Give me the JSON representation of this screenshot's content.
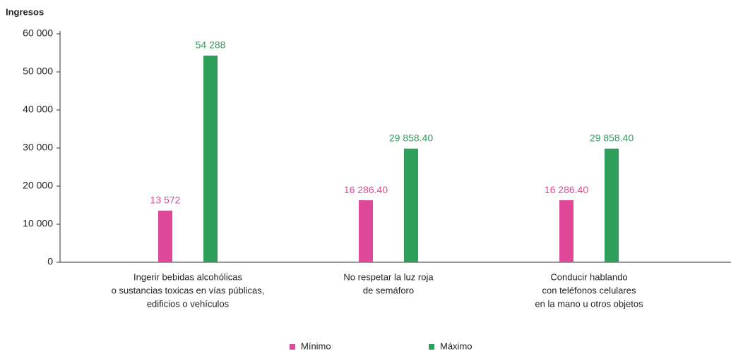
{
  "chart_data": {
    "type": "bar",
    "title": "Ingresos",
    "categories": [
      [
        "Ingerir bebidas alcohólicas",
        "o sustancias toxicas en vías públicas,",
        "edificios o vehículos"
      ],
      [
        "No respetar la luz roja",
        "de semáforo"
      ],
      [
        "Conducir hablando",
        "con teléfonos celulares",
        "en la mano u otros objetos"
      ]
    ],
    "series": [
      {
        "name": "Mínimo",
        "color": "#e0489a",
        "values": [
          13572,
          16286.4,
          16286.4
        ],
        "value_labels": [
          "13 572",
          "16 286.40",
          "16 286.40"
        ]
      },
      {
        "name": "Máximo",
        "color": "#2e9e5b",
        "values": [
          54288,
          29858.4,
          29858.4
        ],
        "value_labels": [
          "54 288",
          "29 858.40",
          "29 858.40"
        ]
      }
    ],
    "ylim": [
      0,
      60000
    ],
    "yticks": [
      0,
      {
        "value": 10000,
        "label": "10 000"
      },
      {
        "value": 20000,
        "label": "20 000"
      },
      {
        "value": 30000,
        "label": "30 000"
      },
      {
        "value": 40000,
        "label": "40 000"
      },
      {
        "value": 50000,
        "label": "50 000"
      },
      {
        "value": 60000,
        "label": "60 000"
      }
    ],
    "legend": "bottom"
  }
}
